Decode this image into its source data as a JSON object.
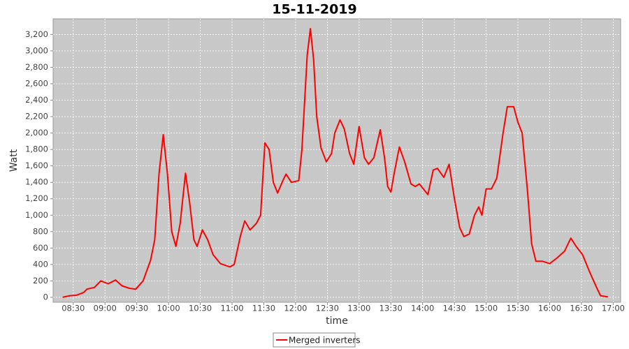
{
  "chart_data": {
    "type": "line",
    "title": "15-11-2019",
    "x_label": "time",
    "y_label": "Watt",
    "x": [
      "08:20",
      "08:27",
      "08:33",
      "08:40",
      "08:43",
      "08:50",
      "08:56",
      "09:03",
      "09:10",
      "09:16",
      "09:23",
      "09:29",
      "09:36",
      "09:43",
      "09:47",
      "09:51",
      "09:55",
      "09:59",
      "10:03",
      "10:07",
      "10:11",
      "10:16",
      "10:20",
      "10:24",
      "10:27",
      "10:32",
      "10:37",
      "10:42",
      "10:49",
      "10:58",
      "11:02",
      "11:08",
      "11:12",
      "11:17",
      "11:23",
      "11:27",
      "11:31",
      "11:35",
      "11:39",
      "11:43",
      "11:48",
      "11:51",
      "11:56",
      "12:03",
      "12:06",
      "12:11",
      "12:14",
      "12:17",
      "12:20",
      "12:24",
      "12:29",
      "12:34",
      "12:37",
      "12:42",
      "12:46",
      "12:51",
      "12:55",
      "13:00",
      "13:05",
      "13:09",
      "13:14",
      "13:20",
      "13:24",
      "13:27",
      "13:30",
      "13:33",
      "13:38",
      "13:43",
      "13:49",
      "13:53",
      "13:57",
      "14:00",
      "14:05",
      "14:10",
      "14:14",
      "14:20",
      "14:25",
      "14:30",
      "14:35",
      "14:39",
      "14:44",
      "14:49",
      "14:53",
      "14:56",
      "15:00",
      "15:05",
      "15:10",
      "15:16",
      "15:20",
      "15:26",
      "15:30",
      "15:34",
      "15:39",
      "15:43",
      "15:47",
      "15:53",
      "16:00",
      "16:07",
      "16:14",
      "16:20",
      "16:25",
      "16:31",
      "16:38",
      "16:45",
      "16:48",
      "16:55"
    ],
    "series": [
      {
        "name": "Merged inverters",
        "color": "#ff0000",
        "values": [
          0,
          20,
          25,
          60,
          100,
          120,
          200,
          165,
          210,
          140,
          110,
          100,
          200,
          450,
          700,
          1500,
          1980,
          1500,
          800,
          620,
          900,
          1510,
          1150,
          700,
          620,
          820,
          700,
          520,
          410,
          370,
          400,
          750,
          930,
          820,
          900,
          1000,
          1880,
          1800,
          1400,
          1270,
          1420,
          1500,
          1400,
          1420,
          1800,
          2950,
          3270,
          2900,
          2200,
          1820,
          1650,
          1750,
          2000,
          2160,
          2050,
          1750,
          1620,
          2080,
          1700,
          1620,
          1700,
          2040,
          1700,
          1350,
          1280,
          1500,
          1830,
          1650,
          1380,
          1350,
          1380,
          1330,
          1250,
          1550,
          1570,
          1460,
          1620,
          1200,
          850,
          740,
          770,
          1000,
          1100,
          1000,
          1320,
          1320,
          1450,
          2000,
          2320,
          2320,
          2130,
          2000,
          1300,
          650,
          440,
          440,
          410,
          480,
          560,
          720,
          620,
          520,
          300,
          100,
          20,
          5
        ]
      }
    ],
    "xlim": [
      "08:11",
      "17:07"
    ],
    "xticks": [
      "08:30",
      "09:00",
      "09:30",
      "10:00",
      "10:30",
      "11:00",
      "11:30",
      "12:00",
      "12:30",
      "13:00",
      "13:30",
      "14:00",
      "14:30",
      "15:00",
      "15:30",
      "16:00",
      "16:30",
      "17:00"
    ],
    "ylim": [
      -60,
      3390
    ],
    "yticks": [
      0,
      200,
      400,
      600,
      800,
      {
        "value": 1000,
        "label": "1,000"
      },
      {
        "value": 1200,
        "label": "1,200"
      },
      {
        "value": 1400,
        "label": "1,400"
      },
      {
        "value": 1600,
        "label": "1,600"
      },
      {
        "value": 1800,
        "label": "1,800"
      },
      {
        "value": 2000,
        "label": "2,000"
      },
      {
        "value": 2200,
        "label": "2,200"
      },
      {
        "value": 2400,
        "label": "2,400"
      },
      {
        "value": 2600,
        "label": "2,600"
      },
      {
        "value": 2800,
        "label": "2,800"
      },
      {
        "value": 3000,
        "label": "3,000"
      },
      {
        "value": 3200,
        "label": "3,200"
      }
    ],
    "grid": true,
    "legend": "bottom"
  }
}
